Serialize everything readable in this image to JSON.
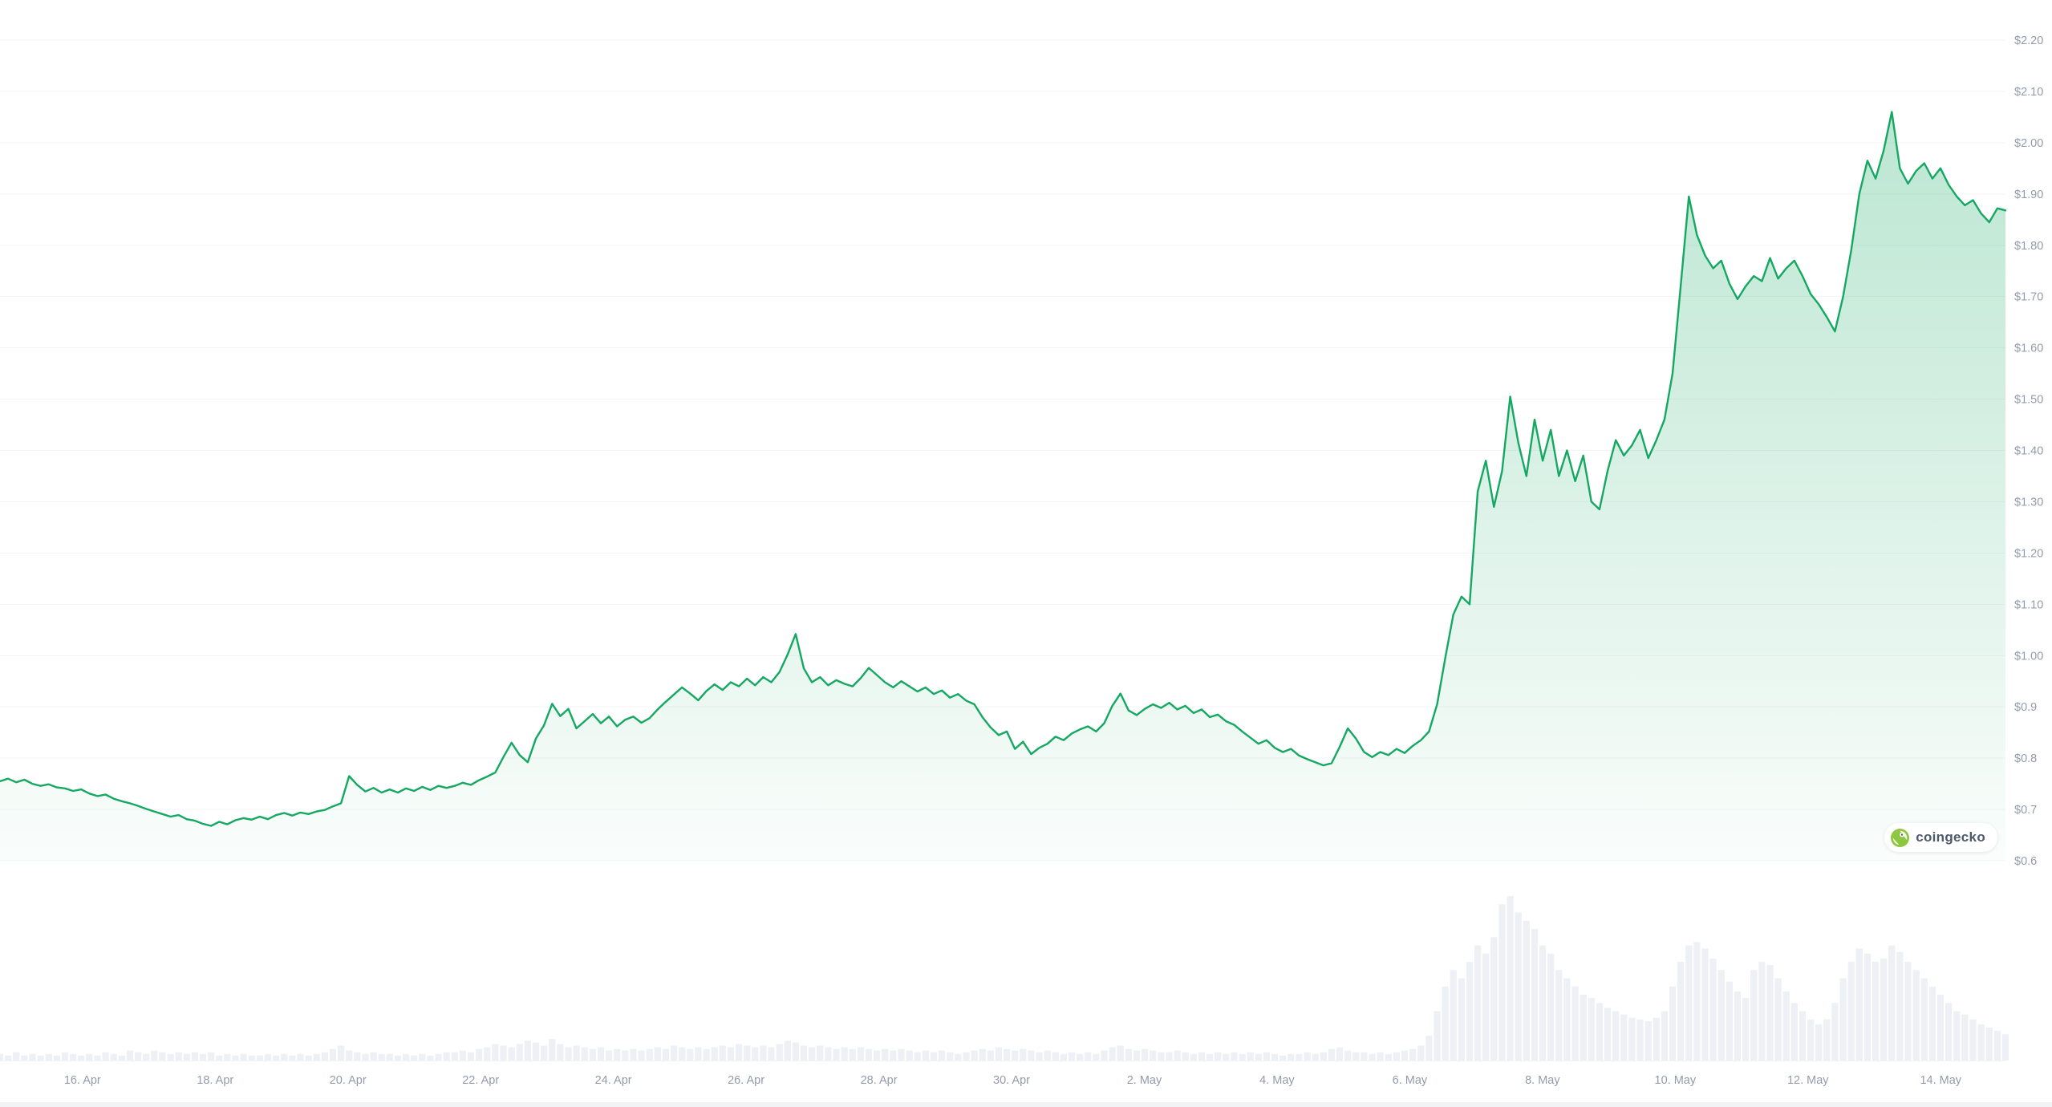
{
  "watermark": {
    "label": "coingecko"
  },
  "colors": {
    "background": "#ffffff",
    "line": "#15a862",
    "area_fill_base": "#15a862",
    "axis_text": "#929cab",
    "grid_line": "#f3f5f8",
    "volume_bar": "#edf0f4",
    "gecko_logo_green": "#8dc63f"
  },
  "chart_data": {
    "type": "area",
    "title": "",
    "legend_position": "none",
    "grid": true,
    "x_labels": [
      "16. Apr",
      "18. Apr",
      "20. Apr",
      "22. Apr",
      "24. Apr",
      "26. Apr",
      "28. Apr",
      "30. Apr",
      "2. May",
      "4. May",
      "6. May",
      "8. May",
      "10. May",
      "12. May",
      "14. May"
    ],
    "y_axis": {
      "position": "right",
      "min": 0.6,
      "max": 2.2,
      "step": 0.1,
      "labels": [
        "$2.20",
        "$2.10",
        "$2.00",
        "$1.90",
        "$1.80",
        "$1.70",
        "$1.60",
        "$1.50",
        "$1.40",
        "$1.30",
        "$1.20",
        "$1.10",
        "$1.00",
        "$0.9",
        "$0.8",
        "$0.7",
        "$0.6"
      ]
    },
    "series": [
      {
        "name": "price_usd",
        "type": "line-area",
        "values": [
          0.755,
          0.76,
          0.753,
          0.758,
          0.75,
          0.746,
          0.749,
          0.743,
          0.741,
          0.736,
          0.739,
          0.731,
          0.726,
          0.729,
          0.721,
          0.716,
          0.712,
          0.707,
          0.701,
          0.696,
          0.691,
          0.686,
          0.689,
          0.681,
          0.678,
          0.672,
          0.668,
          0.676,
          0.671,
          0.679,
          0.683,
          0.68,
          0.686,
          0.681,
          0.689,
          0.693,
          0.688,
          0.694,
          0.691,
          0.696,
          0.699,
          0.706,
          0.712,
          0.765,
          0.748,
          0.735,
          0.742,
          0.733,
          0.739,
          0.733,
          0.741,
          0.736,
          0.744,
          0.738,
          0.746,
          0.742,
          0.746,
          0.752,
          0.748,
          0.757,
          0.764,
          0.772,
          0.802,
          0.83,
          0.806,
          0.792,
          0.838,
          0.864,
          0.906,
          0.882,
          0.896,
          0.858,
          0.872,
          0.886,
          0.868,
          0.881,
          0.862,
          0.875,
          0.881,
          0.869,
          0.878,
          0.895,
          0.91,
          0.924,
          0.938,
          0.926,
          0.913,
          0.931,
          0.944,
          0.933,
          0.948,
          0.94,
          0.955,
          0.942,
          0.958,
          0.948,
          0.968,
          1.002,
          1.042,
          0.975,
          0.948,
          0.958,
          0.942,
          0.952,
          0.945,
          0.94,
          0.956,
          0.976,
          0.962,
          0.948,
          0.938,
          0.95,
          0.94,
          0.93,
          0.938,
          0.925,
          0.932,
          0.918,
          0.925,
          0.912,
          0.905,
          0.88,
          0.86,
          0.845,
          0.852,
          0.818,
          0.832,
          0.808,
          0.82,
          0.828,
          0.842,
          0.835,
          0.848,
          0.856,
          0.862,
          0.852,
          0.868,
          0.902,
          0.926,
          0.893,
          0.884,
          0.896,
          0.905,
          0.898,
          0.908,
          0.895,
          0.902,
          0.888,
          0.895,
          0.88,
          0.885,
          0.872,
          0.865,
          0.852,
          0.84,
          0.828,
          0.835,
          0.82,
          0.812,
          0.818,
          0.805,
          0.798,
          0.792,
          0.786,
          0.79,
          0.822,
          0.858,
          0.838,
          0.812,
          0.802,
          0.812,
          0.806,
          0.818,
          0.81,
          0.824,
          0.835,
          0.852,
          0.905,
          0.995,
          1.08,
          1.115,
          1.1,
          1.32,
          1.38,
          1.29,
          1.36,
          1.505,
          1.415,
          1.35,
          1.46,
          1.38,
          1.44,
          1.35,
          1.4,
          1.34,
          1.39,
          1.3,
          1.285,
          1.36,
          1.42,
          1.39,
          1.41,
          1.44,
          1.385,
          1.42,
          1.46,
          1.55,
          1.72,
          1.895,
          1.82,
          1.78,
          1.755,
          1.77,
          1.725,
          1.695,
          1.72,
          1.74,
          1.73,
          1.775,
          1.735,
          1.755,
          1.77,
          1.74,
          1.705,
          1.685,
          1.66,
          1.632,
          1.7,
          1.79,
          1.9,
          1.965,
          1.93,
          1.985,
          2.06,
          1.95,
          1.92,
          1.945,
          1.96,
          1.93,
          1.95,
          1.918,
          1.895,
          1.878,
          1.888,
          1.862,
          1.845,
          1.872,
          1.868
        ]
      },
      {
        "name": "volume_relative",
        "type": "bar",
        "values": [
          0.04,
          0.03,
          0.05,
          0.03,
          0.04,
          0.03,
          0.04,
          0.03,
          0.05,
          0.04,
          0.03,
          0.04,
          0.03,
          0.05,
          0.04,
          0.03,
          0.06,
          0.05,
          0.04,
          0.06,
          0.05,
          0.04,
          0.05,
          0.04,
          0.05,
          0.04,
          0.05,
          0.03,
          0.04,
          0.03,
          0.04,
          0.03,
          0.03,
          0.04,
          0.03,
          0.04,
          0.03,
          0.04,
          0.03,
          0.04,
          0.05,
          0.07,
          0.09,
          0.06,
          0.05,
          0.04,
          0.05,
          0.04,
          0.04,
          0.03,
          0.04,
          0.03,
          0.04,
          0.03,
          0.04,
          0.05,
          0.05,
          0.06,
          0.05,
          0.07,
          0.08,
          0.1,
          0.09,
          0.08,
          0.1,
          0.12,
          0.11,
          0.09,
          0.13,
          0.1,
          0.08,
          0.09,
          0.08,
          0.07,
          0.08,
          0.06,
          0.07,
          0.06,
          0.07,
          0.06,
          0.07,
          0.08,
          0.07,
          0.09,
          0.08,
          0.07,
          0.08,
          0.07,
          0.08,
          0.09,
          0.08,
          0.1,
          0.09,
          0.08,
          0.09,
          0.08,
          0.1,
          0.12,
          0.11,
          0.09,
          0.08,
          0.09,
          0.08,
          0.07,
          0.08,
          0.07,
          0.08,
          0.07,
          0.06,
          0.07,
          0.06,
          0.07,
          0.06,
          0.05,
          0.06,
          0.05,
          0.06,
          0.05,
          0.04,
          0.05,
          0.06,
          0.07,
          0.06,
          0.08,
          0.07,
          0.06,
          0.07,
          0.06,
          0.05,
          0.06,
          0.05,
          0.04,
          0.05,
          0.04,
          0.05,
          0.04,
          0.06,
          0.08,
          0.09,
          0.07,
          0.06,
          0.07,
          0.06,
          0.05,
          0.05,
          0.06,
          0.05,
          0.04,
          0.05,
          0.04,
          0.05,
          0.04,
          0.05,
          0.04,
          0.05,
          0.04,
          0.05,
          0.04,
          0.03,
          0.04,
          0.04,
          0.05,
          0.04,
          0.05,
          0.07,
          0.08,
          0.06,
          0.05,
          0.05,
          0.04,
          0.05,
          0.04,
          0.05,
          0.06,
          0.07,
          0.09,
          0.15,
          0.3,
          0.45,
          0.55,
          0.5,
          0.6,
          0.7,
          0.65,
          0.75,
          0.95,
          1.0,
          0.9,
          0.85,
          0.8,
          0.7,
          0.65,
          0.55,
          0.5,
          0.45,
          0.4,
          0.38,
          0.35,
          0.32,
          0.3,
          0.28,
          0.26,
          0.25,
          0.24,
          0.26,
          0.3,
          0.45,
          0.6,
          0.7,
          0.72,
          0.68,
          0.62,
          0.55,
          0.48,
          0.42,
          0.38,
          0.55,
          0.6,
          0.58,
          0.5,
          0.42,
          0.35,
          0.3,
          0.25,
          0.22,
          0.25,
          0.35,
          0.5,
          0.6,
          0.68,
          0.65,
          0.6,
          0.62,
          0.7,
          0.66,
          0.6,
          0.55,
          0.5,
          0.45,
          0.4,
          0.35,
          0.3,
          0.28,
          0.25,
          0.22,
          0.2,
          0.18,
          0.16
        ]
      }
    ]
  }
}
